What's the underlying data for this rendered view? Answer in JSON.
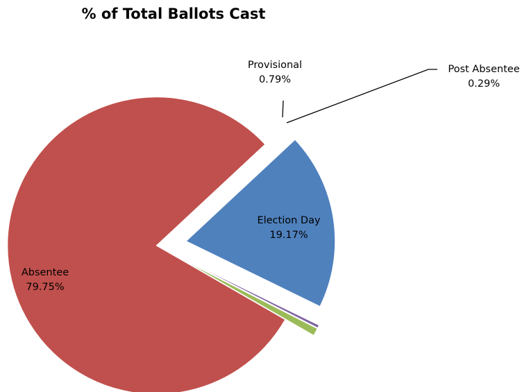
{
  "chart_data": {
    "type": "pie",
    "title": "% of Total Ballots Cast",
    "slices": [
      {
        "name": "Election Day",
        "value": 19.17,
        "label": "19.17%",
        "color": "#4F81BD"
      },
      {
        "name": "Post Absentee",
        "value": 0.29,
        "label": "0.29%",
        "color": "#8064A2"
      },
      {
        "name": "Provisional",
        "value": 0.79,
        "label": "0.79%",
        "color": "#9BBB59"
      },
      {
        "name": "Absentee",
        "value": 79.75,
        "label": "79.75%",
        "color": "#C0504D"
      }
    ],
    "exploded": true,
    "legend": "none"
  }
}
